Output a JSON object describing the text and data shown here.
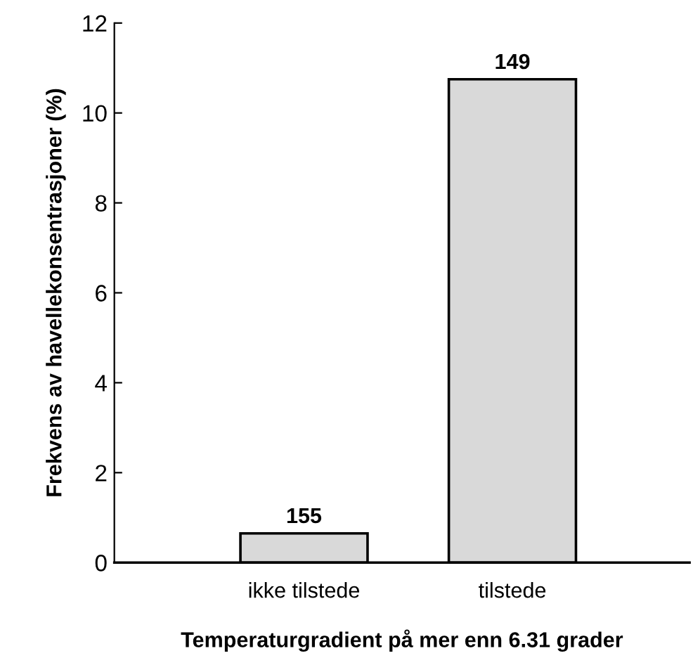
{
  "chart_data": {
    "type": "bar",
    "xlabel": "Temperaturgradient på mer enn 6.31 grader",
    "ylabel": "Frekvens av havellekonsentrasjoner (%)",
    "categories": [
      "ikke tilstede",
      "tilstede"
    ],
    "values": [
      0.65,
      10.75
    ],
    "color": "#d9d9d9",
    "ylim": [
      0,
      12
    ],
    "yticks": [
      0,
      2,
      4,
      6,
      8,
      10,
      12
    ],
    "annotations": [
      {
        "text": "155",
        "x": "ikke tilstede",
        "y": 0.65
      },
      {
        "text": "149",
        "x": "tilstede",
        "y": 10.75
      }
    ],
    "grid": false,
    "legend": false
  }
}
